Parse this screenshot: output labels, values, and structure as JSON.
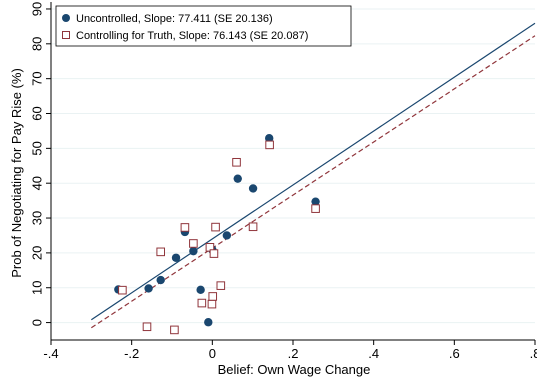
{
  "chart_data": {
    "type": "scatter",
    "xlabel": "Belief: Own Wage Change",
    "ylabel": "Prob of Negotiating for Pay Rise (%)",
    "xlim": [
      -0.4,
      0.8
    ],
    "ylim": [
      -5,
      92
    ],
    "x_ticks": [
      -0.4,
      -0.2,
      0,
      0.2,
      0.4,
      0.6,
      0.8
    ],
    "x_tick_labels": [
      "-.4",
      "-.2",
      "0",
      ".2",
      ".4",
      ".6",
      ".8"
    ],
    "y_ticks": [
      0,
      10,
      20,
      30,
      40,
      50,
      60,
      70,
      80,
      90
    ],
    "y_tick_labels": [
      "0",
      "10",
      "20",
      "30",
      "40",
      "50",
      "60",
      "70",
      "80",
      "90"
    ],
    "grid": "horizontal",
    "legend_position": "top-left",
    "series": [
      {
        "name": "Uncontrolled, Slope: 77.411 (SE 20.136)",
        "marker": "filled-circle",
        "color": "#1a476f",
        "points": [
          {
            "x": -0.233,
            "y": 9.5
          },
          {
            "x": -0.158,
            "y": 9.8
          },
          {
            "x": -0.128,
            "y": 12.2
          },
          {
            "x": -0.09,
            "y": 18.6
          },
          {
            "x": -0.068,
            "y": 26.0
          },
          {
            "x": -0.047,
            "y": 20.5
          },
          {
            "x": -0.029,
            "y": 9.4
          },
          {
            "x": -0.01,
            "y": 0.1
          },
          {
            "x": 0.0,
            "y": 20.9
          },
          {
            "x": 0.036,
            "y": 25.0
          },
          {
            "x": 0.063,
            "y": 41.3
          },
          {
            "x": 0.101,
            "y": 38.5
          },
          {
            "x": 0.141,
            "y": 52.9
          },
          {
            "x": 0.256,
            "y": 34.7
          }
        ]
      },
      {
        "name": "Controlling for Truth, Slope: 76.143 (SE 20.087)",
        "marker": "hollow-square",
        "color": "#90353b",
        "points": [
          {
            "x": -0.223,
            "y": 9.3
          },
          {
            "x": -0.162,
            "y": -1.2
          },
          {
            "x": -0.128,
            "y": 20.3
          },
          {
            "x": -0.094,
            "y": -2.1
          },
          {
            "x": -0.068,
            "y": 27.3
          },
          {
            "x": -0.047,
            "y": 22.7
          },
          {
            "x": -0.026,
            "y": 5.6
          },
          {
            "x": -0.006,
            "y": 21.6
          },
          {
            "x": -0.001,
            "y": 5.3
          },
          {
            "x": 0.001,
            "y": 7.5
          },
          {
            "x": 0.004,
            "y": 19.8
          },
          {
            "x": 0.008,
            "y": 27.4
          },
          {
            "x": 0.021,
            "y": 10.6
          },
          {
            "x": 0.06,
            "y": 46.0
          },
          {
            "x": 0.101,
            "y": 27.5
          },
          {
            "x": 0.142,
            "y": 51.0
          },
          {
            "x": 0.256,
            "y": 32.7
          }
        ]
      }
    ],
    "fit_lines": [
      {
        "series": "Uncontrolled, Slope: 77.411 (SE 20.136)",
        "style": "solid",
        "color": "#1a476f",
        "x": [
          -0.3,
          0.8
        ],
        "y": [
          0.8,
          85.9
        ]
      },
      {
        "series": "Controlling for Truth, Slope: 76.143 (SE 20.087)",
        "style": "dashed",
        "color": "#90353b",
        "x": [
          -0.3,
          0.8
        ],
        "y": [
          -1.5,
          82.3
        ]
      }
    ]
  }
}
